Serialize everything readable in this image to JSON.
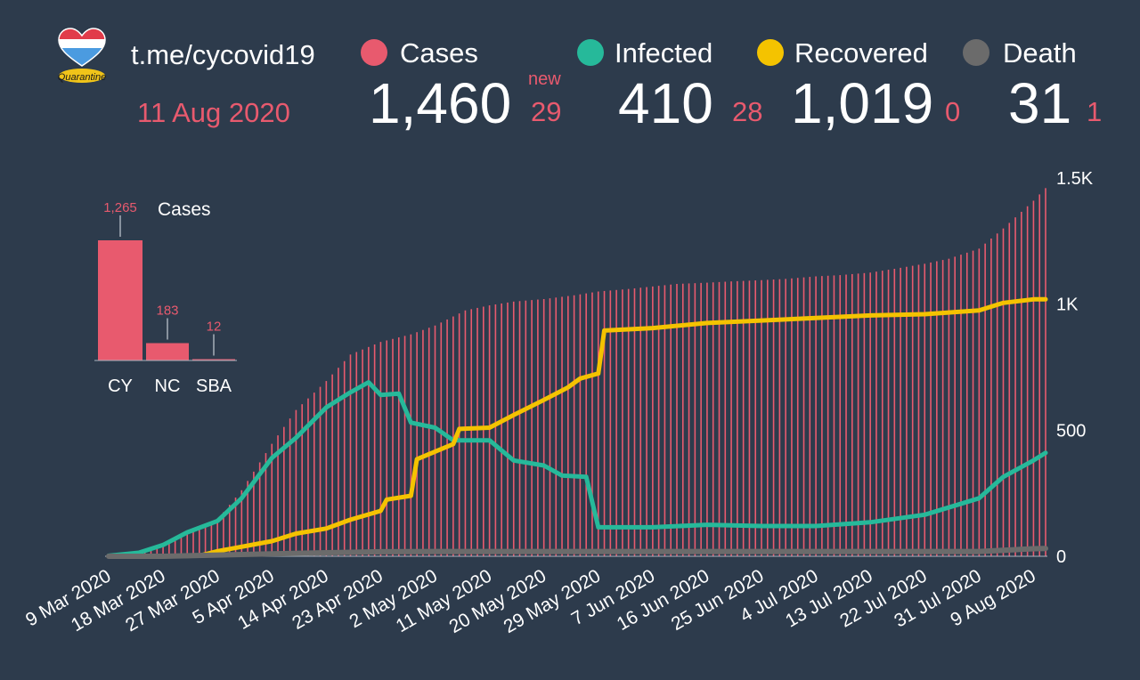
{
  "header": {
    "channel": "t.me/cycovid19",
    "date": "11 Aug 2020",
    "new_label": "new",
    "logo_text": "Quarantine"
  },
  "stats": [
    {
      "label": "Cases",
      "value": "1,460",
      "delta": "29",
      "color": "#e85a6e"
    },
    {
      "label": "Infected",
      "value": "410",
      "delta": "28",
      "color": "#26b99a"
    },
    {
      "label": "Recovered",
      "value": "1,019",
      "delta": "0",
      "color": "#f4c300"
    },
    {
      "label": "Death",
      "value": "31",
      "delta": "1",
      "color": "#6b6b6b"
    }
  ],
  "chart_data": [
    {
      "type": "bar",
      "title": "Cases",
      "categories": [
        "CY",
        "NC",
        "SBA"
      ],
      "values": [
        1265,
        183,
        12
      ],
      "value_labels": [
        "1,265",
        "183",
        "12"
      ],
      "color": "#e85a6e"
    },
    {
      "type": "line",
      "x_start": "9 Mar 2020",
      "x_end": "11 Aug 2020",
      "x_tick_labels": [
        "9 Mar 2020",
        "18 Mar 2020",
        "27 Mar 2020",
        "5 Apr 2020",
        "14 Apr 2020",
        "23 Apr 2020",
        "2 May 2020",
        "11 May 2020",
        "20 May 2020",
        "29 May 2020",
        "7 Jun 2020",
        "16 Jun 2020",
        "25 Jun 2020",
        "4 Jul 2020",
        "13 Jul 2020",
        "22 Jul 2020",
        "31 Jul 2020",
        "9 Aug 2020"
      ],
      "y_ticks": [
        0,
        500,
        1000,
        1500
      ],
      "y_tick_labels": [
        "0",
        "500",
        "1K",
        "1.5K"
      ],
      "ylim": [
        0,
        1500
      ],
      "series": [
        {
          "name": "Cases",
          "render": "bars",
          "color": "#e85a6e",
          "points": [
            [
              "9 Mar 2020",
              2
            ],
            [
              "14 Mar 2020",
              14
            ],
            [
              "18 Mar 2020",
              45
            ],
            [
              "22 Mar 2020",
              95
            ],
            [
              "27 Mar 2020",
              146
            ],
            [
              "31 Mar 2020",
              262
            ],
            [
              "5 Apr 2020",
              446
            ],
            [
              "9 Apr 2020",
              580
            ],
            [
              "14 Apr 2020",
              695
            ],
            [
              "18 Apr 2020",
              800
            ],
            [
              "23 Apr 2020",
              850
            ],
            [
              "28 Apr 2020",
              880
            ],
            [
              "2 May 2020",
              915
            ],
            [
              "7 May 2020",
              975
            ],
            [
              "11 May 2020",
              995
            ],
            [
              "15 May 2020",
              1010
            ],
            [
              "20 May 2020",
              1020
            ],
            [
              "25 May 2020",
              1035
            ],
            [
              "29 May 2020",
              1050
            ],
            [
              "3 Jun 2020",
              1060
            ],
            [
              "7 Jun 2020",
              1070
            ],
            [
              "11 Jun 2020",
              1080
            ],
            [
              "16 Jun 2020",
              1085
            ],
            [
              "20 Jun 2020",
              1090
            ],
            [
              "25 Jun 2020",
              1095
            ],
            [
              "29 Jun 2020",
              1100
            ],
            [
              "4 Jul 2020",
              1110
            ],
            [
              "8 Jul 2020",
              1115
            ],
            [
              "13 Jul 2020",
              1125
            ],
            [
              "17 Jul 2020",
              1140
            ],
            [
              "22 Jul 2020",
              1160
            ],
            [
              "26 Jul 2020",
              1180
            ],
            [
              "31 Jul 2020",
              1220
            ],
            [
              "4 Aug 2020",
              1300
            ],
            [
              "9 Aug 2020",
              1410
            ],
            [
              "11 Aug 2020",
              1460
            ]
          ]
        },
        {
          "name": "Infected",
          "render": "line",
          "color": "#26b99a",
          "points": [
            [
              "9 Mar 2020",
              2
            ],
            [
              "14 Mar 2020",
              14
            ],
            [
              "18 Mar 2020",
              45
            ],
            [
              "22 Mar 2020",
              95
            ],
            [
              "27 Mar 2020",
              140
            ],
            [
              "31 Mar 2020",
              230
            ],
            [
              "5 Apr 2020",
              390
            ],
            [
              "9 Apr 2020",
              470
            ],
            [
              "14 Apr 2020",
              590
            ],
            [
              "18 Apr 2020",
              650
            ],
            [
              "21 Apr 2020",
              690
            ],
            [
              "23 Apr 2020",
              640
            ],
            [
              "26 Apr 2020",
              645
            ],
            [
              "28 Apr 2020",
              530
            ],
            [
              "2 May 2020",
              510
            ],
            [
              "5 May 2020",
              460
            ],
            [
              "11 May 2020",
              460
            ],
            [
              "15 May 2020",
              380
            ],
            [
              "20 May 2020",
              360
            ],
            [
              "23 May 2020",
              320
            ],
            [
              "27 May 2020",
              315
            ],
            [
              "29 May 2020",
              115
            ],
            [
              "7 Jun 2020",
              115
            ],
            [
              "16 Jun 2020",
              125
            ],
            [
              "25 Jun 2020",
              120
            ],
            [
              "4 Jul 2020",
              120
            ],
            [
              "13 Jul 2020",
              135
            ],
            [
              "22 Jul 2020",
              165
            ],
            [
              "31 Jul 2020",
              230
            ],
            [
              "4 Aug 2020",
              315
            ],
            [
              "9 Aug 2020",
              380
            ],
            [
              "11 Aug 2020",
              410
            ]
          ]
        },
        {
          "name": "Recovered",
          "render": "line",
          "color": "#f4c300",
          "points": [
            [
              "9 Mar 2020",
              0
            ],
            [
              "18 Mar 2020",
              0
            ],
            [
              "24 Mar 2020",
              2
            ],
            [
              "27 Mar 2020",
              20
            ],
            [
              "5 Apr 2020",
              60
            ],
            [
              "9 Apr 2020",
              90
            ],
            [
              "14 Apr 2020",
              110
            ],
            [
              "18 Apr 2020",
              145
            ],
            [
              "23 Apr 2020",
              180
            ],
            [
              "24 Apr 2020",
              225
            ],
            [
              "28 Apr 2020",
              240
            ],
            [
              "29 Apr 2020",
              385
            ],
            [
              "2 May 2020",
              415
            ],
            [
              "5 May 2020",
              445
            ],
            [
              "6 May 2020",
              505
            ],
            [
              "11 May 2020",
              510
            ],
            [
              "15 May 2020",
              560
            ],
            [
              "20 May 2020",
              620
            ],
            [
              "24 May 2020",
              670
            ],
            [
              "26 May 2020",
              705
            ],
            [
              "29 May 2020",
              725
            ],
            [
              "30 May 2020",
              895
            ],
            [
              "7 Jun 2020",
              905
            ],
            [
              "16 Jun 2020",
              925
            ],
            [
              "25 Jun 2020",
              935
            ],
            [
              "4 Jul 2020",
              945
            ],
            [
              "13 Jul 2020",
              955
            ],
            [
              "22 Jul 2020",
              960
            ],
            [
              "31 Jul 2020",
              975
            ],
            [
              "4 Aug 2020",
              1005
            ],
            [
              "9 Aug 2020",
              1019
            ],
            [
              "11 Aug 2020",
              1019
            ]
          ]
        },
        {
          "name": "Death",
          "render": "line",
          "color": "#6b6b6b",
          "points": [
            [
              "9 Mar 2020",
              0
            ],
            [
              "18 Mar 2020",
              0
            ],
            [
              "27 Mar 2020",
              5
            ],
            [
              "5 Apr 2020",
              10
            ],
            [
              "14 Apr 2020",
              14
            ],
            [
              "23 Apr 2020",
              18
            ],
            [
              "2 May 2020",
              19
            ],
            [
              "11 May 2020",
              19
            ],
            [
              "20 May 2020",
              19
            ],
            [
              "29 May 2020",
              19
            ],
            [
              "7 Jun 2020",
              19
            ],
            [
              "16 Jun 2020",
              19
            ],
            [
              "25 Jun 2020",
              19
            ],
            [
              "4 Jul 2020",
              19
            ],
            [
              "13 Jul 2020",
              19
            ],
            [
              "22 Jul 2020",
              19
            ],
            [
              "31 Jul 2020",
              19
            ],
            [
              "9 Aug 2020",
              30
            ],
            [
              "11 Aug 2020",
              31
            ]
          ]
        }
      ]
    }
  ]
}
